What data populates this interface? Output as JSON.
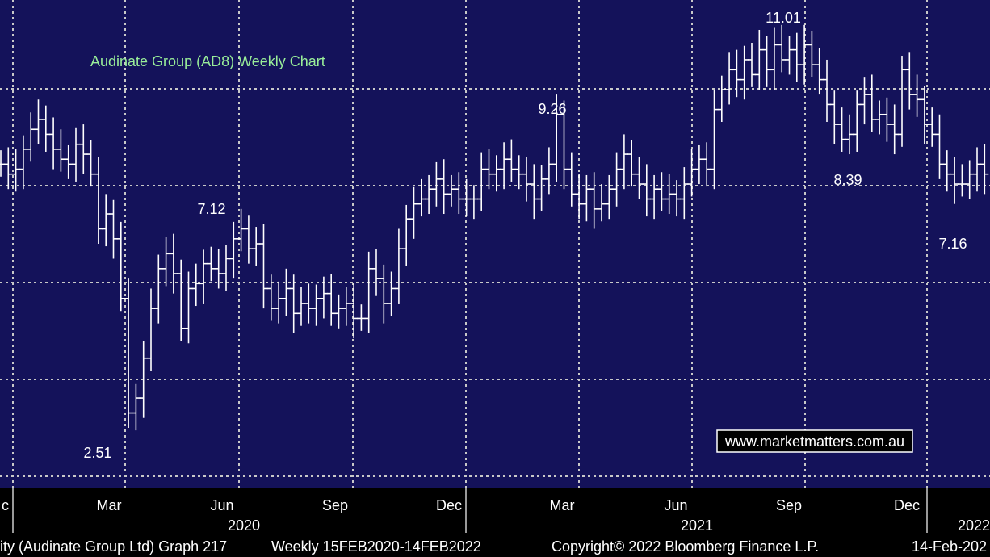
{
  "colors": {
    "plot_background": "#14125a",
    "axis_background": "#000000",
    "grid": "#c8c8c8",
    "bars": "#ffffff",
    "title": "#99ee99",
    "text": "#ffffff",
    "watermark_box": "#ffffff"
  },
  "watermark": "www.marketmatters.com.au",
  "footer": {
    "left": "ity (Audinate Group Ltd) Graph 217",
    "middle": "Weekly 15FEB2020-14FEB2022",
    "copyright": "Copyright© 2022 Bloomberg Finance L.P.",
    "right": "14-Feb-202"
  },
  "chart_data": {
    "type": "ohlc",
    "title": "Audinate Group (AD8) Weekly Chart",
    "frequency": "weekly",
    "grid": true,
    "ylim": [
      1.6,
      11.4
    ],
    "x_month_labels": [
      "c",
      "Mar",
      "Jun",
      "Sep",
      "Dec",
      "Mar",
      "Jun",
      "Sep",
      "Dec"
    ],
    "x_year_labels": [
      "2020",
      "2021",
      "2022"
    ],
    "annotations": [
      {
        "label": "11.01",
        "value": 11.01,
        "kind": "high"
      },
      {
        "label": "9.26",
        "value": 9.26,
        "kind": "high"
      },
      {
        "label": "7.12",
        "value": 7.12,
        "kind": "high"
      },
      {
        "label": "2.51",
        "value": 2.51,
        "kind": "low"
      },
      {
        "label": "8.39",
        "value": 8.39,
        "kind": "low"
      },
      {
        "label": "7.16",
        "value": 7.16,
        "kind": "low"
      }
    ],
    "closes": [
      8.1,
      7.9,
      8.0,
      8.4,
      8.8,
      9.0,
      8.7,
      8.4,
      8.2,
      8.1,
      8.5,
      8.3,
      7.9,
      6.8,
      7.1,
      6.6,
      5.4,
      3.1,
      3.4,
      4.2,
      5.2,
      6.0,
      6.3,
      5.9,
      4.8,
      5.6,
      5.7,
      6.1,
      6.0,
      5.9,
      6.2,
      6.6,
      6.8,
      6.4,
      6.5,
      5.6,
      5.2,
      5.4,
      5.6,
      5.1,
      5.3,
      5.2,
      5.4,
      5.5,
      5.1,
      5.2,
      5.3,
      5.0,
      5.0,
      6.0,
      5.8,
      5.3,
      5.6,
      6.4,
      7.0,
      7.3,
      7.4,
      7.6,
      7.8,
      7.5,
      7.6,
      7.4,
      7.4,
      7.4,
      8.0,
      7.9,
      8.0,
      8.2,
      8.0,
      7.9,
      7.7,
      7.4,
      7.8,
      8.1,
      9.1,
      8.0,
      7.5,
      7.3,
      7.6,
      7.2,
      7.3,
      7.6,
      8.0,
      8.3,
      7.9,
      7.7,
      7.4,
      7.6,
      7.4,
      7.5,
      7.4,
      7.7,
      8.0,
      8.2,
      8.0,
      9.2,
      9.6,
      10.0,
      9.8,
      10.2,
      9.9,
      10.4,
      10.0,
      10.5,
      10.2,
      10.4,
      10.1,
      10.5,
      10.1,
      9.8,
      9.3,
      8.9,
      8.6,
      8.7,
      9.3,
      9.5,
      9.0,
      9.1,
      8.9,
      8.7,
      10.0,
      9.5,
      9.4,
      8.9,
      8.7,
      8.1,
      7.9,
      7.7,
      7.7,
      7.9,
      8.1,
      7.9
    ]
  }
}
